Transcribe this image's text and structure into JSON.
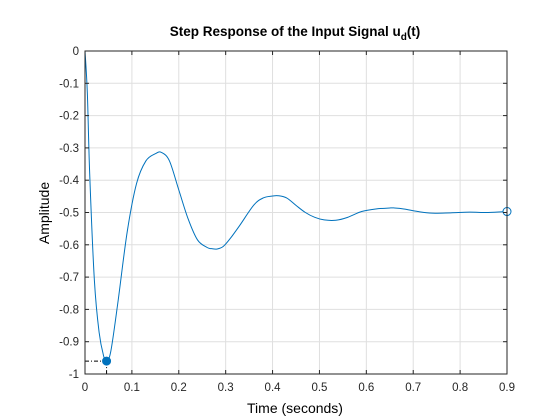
{
  "chart_data": {
    "type": "line",
    "title_main": "Step Response of the Input Signal u",
    "title_sub": "d",
    "title_end": "(t)",
    "xlabel": "Time (seconds)",
    "ylabel": "Amplitude",
    "xlim": [
      0,
      0.9
    ],
    "ylim": [
      -1,
      0
    ],
    "xticks": [
      0,
      0.1,
      0.2,
      0.3,
      0.4,
      0.5,
      0.6,
      0.7,
      0.8,
      0.9
    ],
    "xtick_labels": [
      "0",
      "0.1",
      "0.2",
      "0.3",
      "0.4",
      "0.5",
      "0.6",
      "0.7",
      "0.8",
      "0.9"
    ],
    "yticks": [
      0,
      -0.1,
      -0.2,
      -0.3,
      -0.4,
      -0.5,
      -0.6,
      -0.7,
      -0.8,
      -0.9,
      -1
    ],
    "ytick_labels": [
      "0",
      "-0.1",
      "-0.2",
      "-0.3",
      "-0.4",
      "-0.5",
      "-0.6",
      "-0.7",
      "-0.8",
      "-0.9",
      "-1"
    ],
    "grid": true,
    "series": [
      {
        "color": "#0072bd",
        "final_value": -0.5,
        "x": [
          0,
          0.005,
          0.01,
          0.02,
          0.03,
          0.04,
          0.046,
          0.055,
          0.07,
          0.09,
          0.11,
          0.13,
          0.15,
          0.163,
          0.18,
          0.2,
          0.22,
          0.24,
          0.26,
          0.27,
          0.282,
          0.295,
          0.31,
          0.33,
          0.36,
          0.38,
          0.4,
          0.412,
          0.43,
          0.45,
          0.47,
          0.49,
          0.51,
          0.535,
          0.56,
          0.59,
          0.62,
          0.65,
          0.66,
          0.68,
          0.71,
          0.74,
          0.78,
          0.82,
          0.86,
          0.9
        ],
        "y": [
          0,
          -0.13,
          -0.38,
          -0.71,
          -0.87,
          -0.946,
          -0.96,
          -0.93,
          -0.78,
          -0.56,
          -0.41,
          -0.34,
          -0.318,
          -0.314,
          -0.34,
          -0.43,
          -0.52,
          -0.585,
          -0.608,
          -0.612,
          -0.613,
          -0.605,
          -0.58,
          -0.54,
          -0.477,
          -0.455,
          -0.449,
          -0.448,
          -0.455,
          -0.478,
          -0.5,
          -0.515,
          -0.523,
          -0.524,
          -0.515,
          -0.497,
          -0.489,
          -0.486,
          -0.486,
          -0.489,
          -0.497,
          -0.502,
          -0.501,
          -0.499,
          -0.5,
          -0.497
        ]
      }
    ],
    "annotations": [
      {
        "type": "peak-marker",
        "x": 0.046,
        "y": -0.96,
        "style": "filled-circle"
      },
      {
        "type": "final-value-marker",
        "x": 0.9,
        "y": -0.497,
        "style": "open-circle"
      }
    ]
  }
}
